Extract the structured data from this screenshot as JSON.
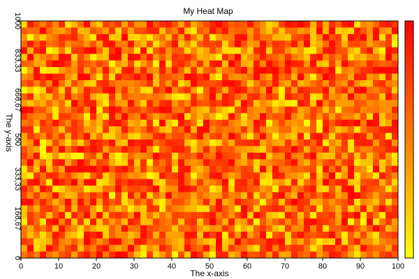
{
  "chart_data": {
    "type": "heatmap",
    "title": "My Heat Map",
    "xlabel": "The x-axis",
    "ylabel": "The y-axis",
    "xlim": [
      0,
      100
    ],
    "ylim": [
      0,
      1000
    ],
    "x_ticks": [
      "0",
      "10",
      "20",
      "30",
      "40",
      "50",
      "60",
      "70",
      "80",
      "90",
      "100"
    ],
    "y_ticks": [
      "0",
      "166,67",
      "333,33",
      "500",
      "666,67",
      "833,33",
      "1000"
    ],
    "x_tick_values": [
      0,
      10,
      20,
      30,
      40,
      50,
      60,
      70,
      80,
      90,
      100
    ],
    "y_tick_values": [
      0,
      166.67,
      333.33,
      500,
      666.67,
      833.33,
      1000
    ],
    "cell_columns": 60,
    "cell_rows": 36,
    "color_scale": {
      "low": "#ffff00",
      "high": "#ff0000",
      "labels": []
    },
    "values_description_note": null,
    "grid": false,
    "legend": "right (color bar)"
  }
}
